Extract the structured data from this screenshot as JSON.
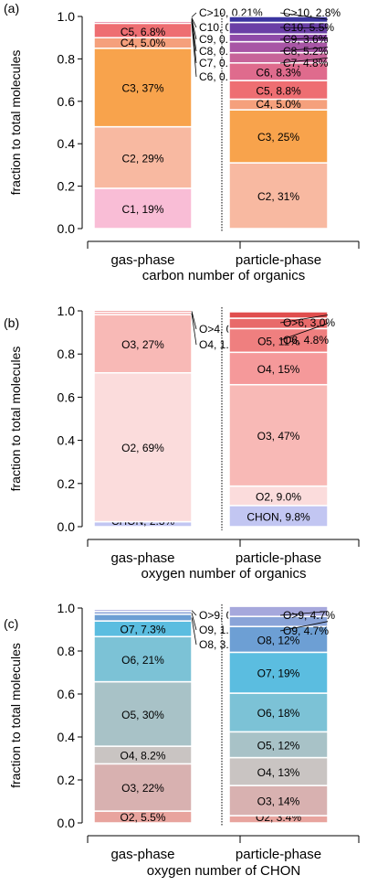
{
  "chart_data": [
    {
      "panel_label": "(a)",
      "type": "bar",
      "stacked": true,
      "ylabel": "fraction to total molecules",
      "xlabel": "carbon number of organics",
      "ylim": [
        0,
        1.0
      ],
      "yticks": [
        "0.0",
        "0.2",
        "0.4",
        "0.6",
        "0.8",
        "1.0"
      ],
      "categories": [
        "gas-phase",
        "particle-phase"
      ],
      "bars": [
        {
          "category": "gas-phase",
          "segments": [
            {
              "label": "C1, 19%",
              "value": 0.19,
              "color": "#f9bdd6",
              "placement": "inside"
            },
            {
              "label": "C2, 29%",
              "value": 0.29,
              "color": "#f8b9a1",
              "placement": "inside"
            },
            {
              "label": "C3, 37%",
              "value": 0.37,
              "color": "#f8a34c",
              "placement": "inside"
            },
            {
              "label": "C4, 5.0%",
              "value": 0.05,
              "color": "#f5a07c",
              "placement": "inside"
            },
            {
              "label": "C5, 6.8%",
              "value": 0.068,
              "color": "#ee6e72",
              "placement": "inside"
            },
            {
              "label": "C6, 0.95%",
              "value": 0.0095,
              "color": "#df6b8d",
              "placement": "outside"
            },
            {
              "label": "C7, 0.60%",
              "value": 0.006,
              "color": "#c76499",
              "placement": "outside"
            },
            {
              "label": "C8, 0.49%",
              "value": 0.0049,
              "color": "#a856a5",
              "placement": "outside"
            },
            {
              "label": "C9, 0.29%",
              "value": 0.0029,
              "color": "#8e4aa8",
              "placement": "outside"
            },
            {
              "label": "C10, 0.49%",
              "value": 0.0049,
              "color": "#6a3fa6",
              "placement": "outside"
            },
            {
              "label": "C>10, 0.21%",
              "value": 0.0021,
              "color": "#3b35a0",
              "placement": "outside"
            }
          ]
        },
        {
          "category": "particle-phase",
          "segments": [
            {
              "label": "C2, 31%",
              "value": 0.31,
              "color": "#f8b9a1",
              "placement": "inside"
            },
            {
              "label": "C3, 25%",
              "value": 0.25,
              "color": "#f8a34c",
              "placement": "inside"
            },
            {
              "label": "C4, 5.0%",
              "value": 0.05,
              "color": "#f5a07c",
              "placement": "inside"
            },
            {
              "label": "C5, 8.8%",
              "value": 0.088,
              "color": "#ee6e72",
              "placement": "inside"
            },
            {
              "label": "C6, 8.3%",
              "value": 0.083,
              "color": "#df6b8d",
              "placement": "inside"
            },
            {
              "label": "C7, 4.8%",
              "value": 0.048,
              "color": "#c76499",
              "placement": "outside"
            },
            {
              "label": "C8, 5.2%",
              "value": 0.052,
              "color": "#a856a5",
              "placement": "outside"
            },
            {
              "label": "C9, 3.6%",
              "value": 0.036,
              "color": "#8e4aa8",
              "placement": "outside"
            },
            {
              "label": "C10, 5.5%",
              "value": 0.055,
              "color": "#6a3fa6",
              "placement": "outside"
            },
            {
              "label": "C>10, 2.8%",
              "value": 0.028,
              "color": "#3b35a0",
              "placement": "outside"
            }
          ]
        }
      ]
    },
    {
      "panel_label": "(b)",
      "type": "bar",
      "stacked": true,
      "ylabel": "fraction to total molecules",
      "xlabel": "oxygen number of organics",
      "ylim": [
        0,
        1.0
      ],
      "yticks": [
        "0.0",
        "0.2",
        "0.4",
        "0.6",
        "0.8",
        "1.0"
      ],
      "categories": [
        "gas-phase",
        "particle-phase"
      ],
      "bars": [
        {
          "category": "gas-phase",
          "segments": [
            {
              "label": "CHON, 2.3%",
              "value": 0.023,
              "color": "#c2c6f2",
              "placement": "inside"
            },
            {
              "label": "O2, 69%",
              "value": 0.69,
              "color": "#fbdcdc",
              "placement": "inside"
            },
            {
              "label": "O3, 27%",
              "value": 0.27,
              "color": "#f8b9b6",
              "placement": "inside"
            },
            {
              "label": "O4, 1.1%",
              "value": 0.011,
              "color": "#f5999a",
              "placement": "outside"
            },
            {
              "label": "O>4, 0.88%",
              "value": 0.0088,
              "color": "#e97474",
              "placement": "outside"
            }
          ]
        },
        {
          "category": "particle-phase",
          "segments": [
            {
              "label": "CHON, 9.8%",
              "value": 0.098,
              "color": "#c2c6f2",
              "placement": "inside"
            },
            {
              "label": "O2, 9.0%",
              "value": 0.09,
              "color": "#fbdcdc",
              "placement": "inside"
            },
            {
              "label": "O3, 47%",
              "value": 0.47,
              "color": "#f8b9b6",
              "placement": "inside"
            },
            {
              "label": "O4, 15%",
              "value": 0.15,
              "color": "#f5999a",
              "placement": "inside"
            },
            {
              "label": "O5, 11%",
              "value": 0.11,
              "color": "#ef7f7f",
              "placement": "inside"
            },
            {
              "label": "O6, 4.8%",
              "value": 0.048,
              "color": "#e86a6a",
              "placement": "outside"
            },
            {
              "label": "O>6, 3.0%",
              "value": 0.03,
              "color": "#e04e4e",
              "placement": "outside"
            }
          ]
        }
      ]
    },
    {
      "panel_label": "(c)",
      "type": "bar",
      "stacked": true,
      "ylabel": "fraction to total molecules",
      "xlabel": "oxygen number of CHON",
      "ylim": [
        0,
        1.0
      ],
      "yticks": [
        "0.0",
        "0.2",
        "0.4",
        "0.6",
        "0.8",
        "1.0"
      ],
      "categories": [
        "gas-phase",
        "particle-phase"
      ],
      "bars": [
        {
          "category": "gas-phase",
          "segments": [
            {
              "label": "O2, 5.5%",
              "value": 0.055,
              "color": "#e8a49e",
              "placement": "inside"
            },
            {
              "label": "O3, 22%",
              "value": 0.22,
              "color": "#d8b1b0",
              "placement": "inside"
            },
            {
              "label": "O4, 8.2%",
              "value": 0.082,
              "color": "#c9c4c2",
              "placement": "inside"
            },
            {
              "label": "O5, 30%",
              "value": 0.3,
              "color": "#a8c2c7",
              "placement": "inside"
            },
            {
              "label": "O6, 21%",
              "value": 0.21,
              "color": "#7cc2d6",
              "placement": "inside"
            },
            {
              "label": "O7, 7.3%",
              "value": 0.073,
              "color": "#5bbde0",
              "placement": "inside"
            },
            {
              "label": "O8, 3.1%",
              "value": 0.031,
              "color": "#6d9fd4",
              "placement": "outside"
            },
            {
              "label": "O9, 1.3%",
              "value": 0.013,
              "color": "#8aa4d8",
              "placement": "outside"
            },
            {
              "label": "O>9, 0.99%",
              "value": 0.0099,
              "color": "#a6a8dc",
              "placement": "outside"
            }
          ]
        },
        {
          "category": "particle-phase",
          "segments": [
            {
              "label": "O2, 3.4%",
              "value": 0.034,
              "color": "#e8a49e",
              "placement": "inside"
            },
            {
              "label": "O3, 14%",
              "value": 0.14,
              "color": "#d8b1b0",
              "placement": "inside"
            },
            {
              "label": "O4, 13%",
              "value": 0.13,
              "color": "#c9c4c2",
              "placement": "inside"
            },
            {
              "label": "O5, 12%",
              "value": 0.12,
              "color": "#a8c2c7",
              "placement": "inside"
            },
            {
              "label": "O6, 18%",
              "value": 0.18,
              "color": "#7cc2d6",
              "placement": "inside"
            },
            {
              "label": "O7, 19%",
              "value": 0.19,
              "color": "#5bbde0",
              "placement": "inside"
            },
            {
              "label": "O8, 12%",
              "value": 0.12,
              "color": "#6d9fd4",
              "placement": "inside"
            },
            {
              "label": "O9, 4.7%",
              "value": 0.047,
              "color": "#8aa4d8",
              "placement": "outside"
            },
            {
              "label": "O>9, 4.7%",
              "value": 0.047,
              "color": "#a6a8dc",
              "placement": "outside"
            }
          ]
        }
      ]
    }
  ]
}
